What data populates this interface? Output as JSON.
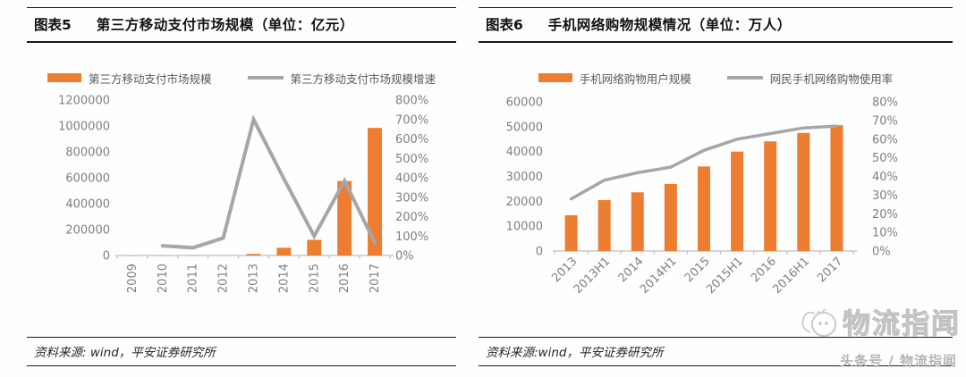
{
  "colors": {
    "bar_orange": "#ED7D31",
    "line_gray": "#A6A6A6",
    "axis_text": "#7F7F7F",
    "axis_line": "#BFBFBF",
    "header_rule": "#1a1a1a"
  },
  "panels": [
    {
      "tag": "图表5",
      "title": "第三方移动支付市场规模（单位：亿元）",
      "legend": [
        {
          "label": "第三方移动支付市场规模",
          "swatch": "bar"
        },
        {
          "label": "第三方移动支付市场规模增速",
          "swatch": "line"
        }
      ],
      "source": "资料来源: wind，平安证券研究所"
    },
    {
      "tag": "图表6",
      "title": "手机网络购物规模情况（单位：万人）",
      "legend": [
        {
          "label": "手机网络购物用户规模",
          "swatch": "bar"
        },
        {
          "label": "网民手机网络购物使用率",
          "swatch": "line"
        }
      ],
      "source": "资料来源:wind，平安证券研究所"
    }
  ],
  "chart_data": [
    {
      "type": "bar",
      "title": "第三方移动支付市场规模（单位：亿元）",
      "categories": [
        "2009",
        "2010",
        "2011",
        "2012",
        "2013",
        "2014",
        "2015",
        "2016",
        "2017"
      ],
      "series": [
        {
          "name": "第三方移动支付市场规模",
          "type": "bar",
          "axis": "left",
          "values": [
            24,
            60,
            742,
            1511,
            12197,
            59924,
            121000,
            575000,
            985000
          ]
        },
        {
          "name": "第三方移动支付市场规模增速",
          "type": "line",
          "axis": "right",
          "values": [
            null,
            50,
            40,
            90,
            700,
            395,
            100,
            385,
            65
          ]
        }
      ],
      "left_axis": {
        "min": 0,
        "max": 1200000,
        "step": 200000,
        "suffix": ""
      },
      "right_axis": {
        "min": 0,
        "max": 800,
        "step": 100,
        "suffix": "%"
      },
      "x_label_rotation": -90,
      "grid": false,
      "legend_position": "top"
    },
    {
      "type": "bar",
      "title": "手机网络购物规模情况（单位：万人）",
      "categories": [
        "2013",
        "2013H1",
        "2014",
        "2014H1",
        "2015",
        "2015H1",
        "2016",
        "2016H1",
        "2017"
      ],
      "series": [
        {
          "name": "手机网络购物用户规模",
          "type": "bar",
          "axis": "left",
          "values": [
            14400,
            20500,
            23600,
            27000,
            34000,
            40000,
            44100,
            47500,
            50600
          ]
        },
        {
          "name": "网民手机网络购物使用率",
          "type": "line",
          "axis": "right",
          "values": [
            28,
            38,
            42,
            45,
            54,
            60,
            63,
            66,
            67
          ]
        }
      ],
      "left_axis": {
        "min": 0,
        "max": 60000,
        "step": 10000,
        "suffix": ""
      },
      "right_axis": {
        "min": 0,
        "max": 80,
        "step": 10,
        "suffix": "%"
      },
      "x_label_rotation": -45,
      "grid": false,
      "legend_position": "top"
    }
  ],
  "watermark": {
    "brand": "物流指闻",
    "subtitle": "头条号 / 物流指闻"
  }
}
